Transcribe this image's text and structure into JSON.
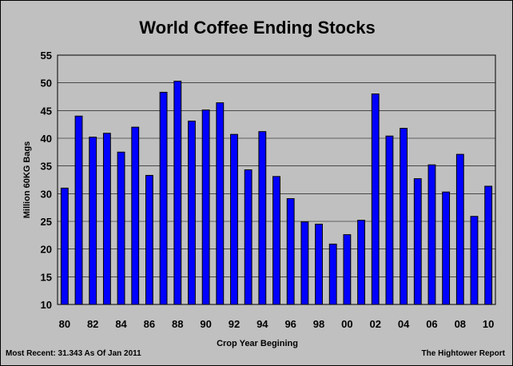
{
  "chart_data": {
    "type": "bar",
    "title": "World Coffee Ending Stocks",
    "xlabel": "Crop Year Begining",
    "ylabel": "Million 60KG Bags",
    "ylim": [
      10,
      55
    ],
    "yticks": [
      10,
      15,
      20,
      25,
      30,
      35,
      40,
      45,
      50,
      55
    ],
    "grid": true,
    "bar_color": "#0000ff",
    "categories": [
      "80",
      "81",
      "82",
      "83",
      "84",
      "85",
      "86",
      "87",
      "88",
      "89",
      "90",
      "91",
      "92",
      "93",
      "94",
      "95",
      "96",
      "97",
      "98",
      "99",
      "00",
      "01",
      "02",
      "03",
      "04",
      "05",
      "06",
      "07",
      "08",
      "09",
      "10"
    ],
    "xtick_labels": [
      "80",
      "",
      "82",
      "",
      "84",
      "",
      "86",
      "",
      "88",
      "",
      "90",
      "",
      "92",
      "",
      "94",
      "",
      "96",
      "",
      "98",
      "",
      "00",
      "",
      "02",
      "",
      "04",
      "",
      "06",
      "",
      "08",
      "",
      "10"
    ],
    "values": [
      31.0,
      44.0,
      40.2,
      40.9,
      37.5,
      42.0,
      33.3,
      48.3,
      50.3,
      43.1,
      45.1,
      46.4,
      40.7,
      34.3,
      41.2,
      33.1,
      29.1,
      24.9,
      24.5,
      20.9,
      22.6,
      25.2,
      48.0,
      40.4,
      41.8,
      32.7,
      35.2,
      30.3,
      37.1,
      25.9,
      31.343
    ]
  },
  "footer": {
    "left": "Most Recent: 31.343 As Of Jan 2011",
    "right": "The Hightower Report"
  }
}
